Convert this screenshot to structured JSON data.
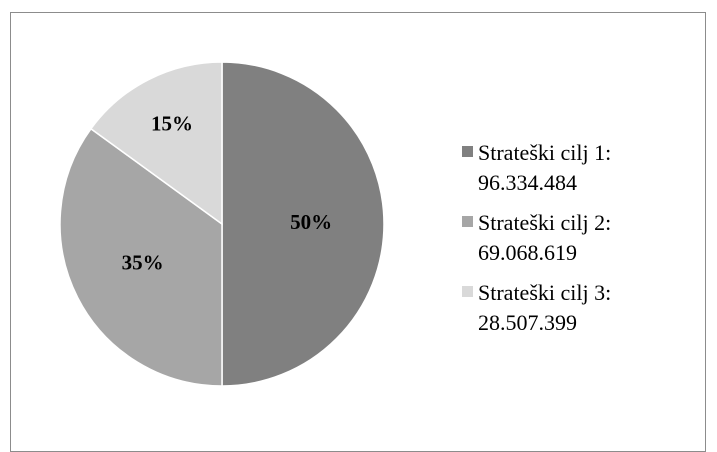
{
  "chart_data": {
    "type": "pie",
    "categories": [
      "Strateški cilj 1: 96.334.484",
      "Strateški cilj 2: 69.068.619",
      "Strateški cilj 3: 28.507.399"
    ],
    "values": [
      50,
      35,
      15
    ],
    "value_labels": [
      "50%",
      "35%",
      "15%"
    ],
    "colors": [
      "#808080",
      "#a6a6a6",
      "#d9d9d9"
    ],
    "legend": "right"
  }
}
